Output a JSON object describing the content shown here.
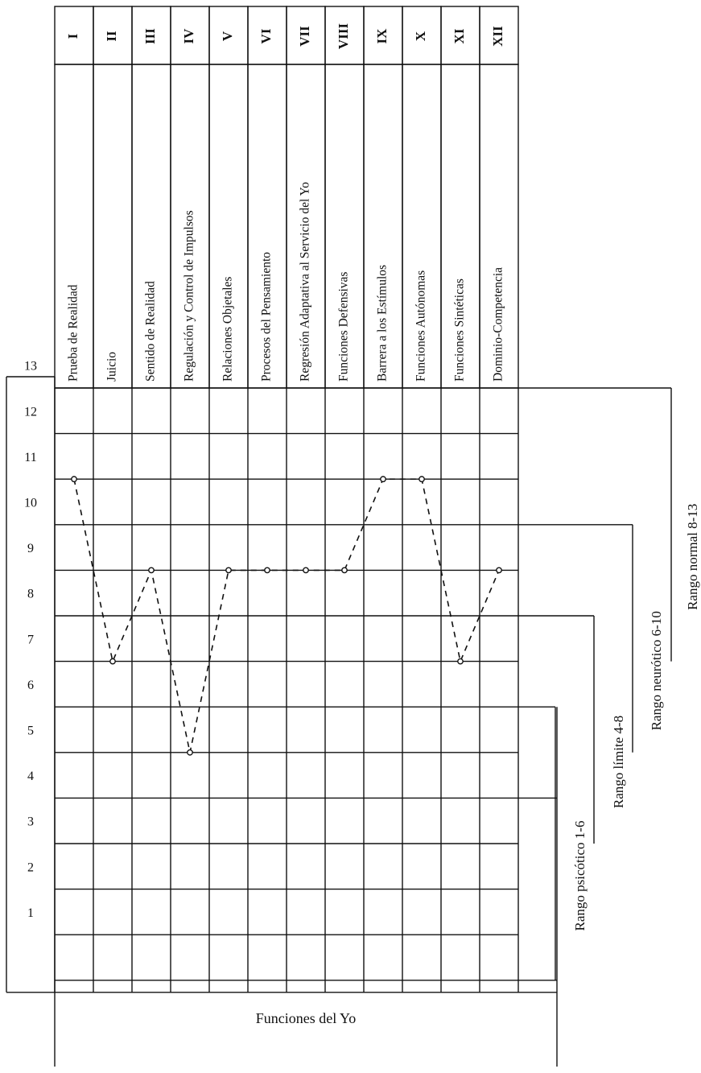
{
  "chart_data": {
    "type": "line",
    "xlabel": "Funciones del Yo",
    "ylim": [
      0,
      13
    ],
    "y_ticks": [
      "1",
      "2",
      "3",
      "4",
      "5",
      "6",
      "7",
      "8",
      "9",
      "10",
      "11",
      "12",
      "13"
    ],
    "categories": [
      {
        "numeral": "I",
        "name": "Prueba de Realidad"
      },
      {
        "numeral": "II",
        "name": "Juicio"
      },
      {
        "numeral": "III",
        "name": "Sentido de Realidad"
      },
      {
        "numeral": "IV",
        "name": "Regulación y Control de Impulsos"
      },
      {
        "numeral": "V",
        "name": "Relaciones Objetales"
      },
      {
        "numeral": "VI",
        "name": "Procesos del Pensamiento"
      },
      {
        "numeral": "VII",
        "name": "Regresión Adaptativa al Servicio del Yo"
      },
      {
        "numeral": "VIII",
        "name": "Funciones Defensivas"
      },
      {
        "numeral": "IX",
        "name": "Barrera a los Estímulos"
      },
      {
        "numeral": "X",
        "name": "Funciones Autónomas"
      },
      {
        "numeral": "XI",
        "name": "Funciones Sintéticas"
      },
      {
        "numeral": "XII",
        "name": "Dominio-Competencia"
      }
    ],
    "series": [
      {
        "values": [
          11,
          7,
          9,
          5,
          9,
          9,
          9,
          9,
          11,
          11,
          7,
          9
        ],
        "line_style": "dashed",
        "marker": "open-circle",
        "color": "#111111"
      }
    ],
    "ranges": [
      {
        "label": "Rango psicótico 1-6",
        "min": 1,
        "max": 6
      },
      {
        "label": "Rango límite 4-8",
        "min": 4,
        "max": 8
      },
      {
        "label": "Rango neurótico 6-10",
        "min": 6,
        "max": 10
      },
      {
        "label": "Rango normal 8-13",
        "min": 8,
        "max": 13
      }
    ],
    "grid": true,
    "legend": "none"
  }
}
